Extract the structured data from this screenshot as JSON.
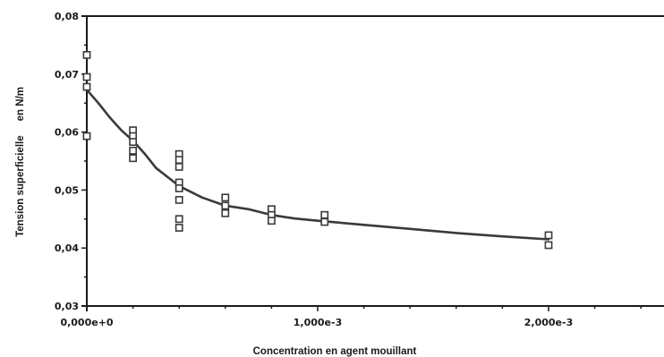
{
  "chart_data": {
    "type": "scatter",
    "title": "",
    "xlabel": "Concentration en agent mouillant",
    "ylabel": "Tension superficielle     en N/m",
    "xlim": [
      0,
      0.0025
    ],
    "ylim": [
      0.03,
      0.08
    ],
    "x_ticks": [
      {
        "value": 0,
        "label": "0,000e+0"
      },
      {
        "value": 0.001,
        "label": "1,000e-3"
      },
      {
        "value": 0.002,
        "label": "2,000e-3"
      }
    ],
    "y_ticks": [
      {
        "value": 0.03,
        "label": "0,03"
      },
      {
        "value": 0.04,
        "label": "0,04"
      },
      {
        "value": 0.05,
        "label": "0,05"
      },
      {
        "value": 0.06,
        "label": "0,06"
      },
      {
        "value": 0.07,
        "label": "0,07"
      },
      {
        "value": 0.08,
        "label": "0,08"
      }
    ],
    "grid": false,
    "legend": "none",
    "series": [
      {
        "type": "scatter",
        "marker": "square",
        "points": [
          [
            0,
            0.0733
          ],
          [
            0,
            0.0695
          ],
          [
            0,
            0.0678
          ],
          [
            0,
            0.0593
          ],
          [
            0.0002,
            0.0603
          ],
          [
            0.0002,
            0.0593
          ],
          [
            0.0002,
            0.0583
          ],
          [
            0.0002,
            0.0568
          ],
          [
            0.0002,
            0.0555
          ],
          [
            0.0004,
            0.0562
          ],
          [
            0.0004,
            0.0552
          ],
          [
            0.0004,
            0.054
          ],
          [
            0.0004,
            0.0513
          ],
          [
            0.0004,
            0.0503
          ],
          [
            0.0004,
            0.0483
          ],
          [
            0.0004,
            0.045
          ],
          [
            0.0004,
            0.0435
          ],
          [
            0.0006,
            0.0487
          ],
          [
            0.0006,
            0.0473
          ],
          [
            0.0006,
            0.046
          ],
          [
            0.0008,
            0.0467
          ],
          [
            0.0008,
            0.0457
          ],
          [
            0.0008,
            0.0447
          ],
          [
            0.00103,
            0.0457
          ],
          [
            0.00103,
            0.0445
          ],
          [
            0.002,
            0.0422
          ],
          [
            0.002,
            0.0405
          ]
        ]
      },
      {
        "type": "line",
        "points": [
          [
            0,
            0.0673
          ],
          [
            5e-05,
            0.065
          ],
          [
            0.0001,
            0.0625
          ],
          [
            0.00015,
            0.0603
          ],
          [
            0.0002,
            0.0585
          ],
          [
            0.00025,
            0.0563
          ],
          [
            0.0003,
            0.0538
          ],
          [
            0.0004,
            0.0507
          ],
          [
            0.0005,
            0.0487
          ],
          [
            0.0006,
            0.0473
          ],
          [
            0.0007,
            0.0467
          ],
          [
            0.0008,
            0.0457
          ],
          [
            0.0009,
            0.0451
          ],
          [
            0.001,
            0.0447
          ],
          [
            0.0012,
            0.044
          ],
          [
            0.0014,
            0.0433
          ],
          [
            0.0016,
            0.0426
          ],
          [
            0.0018,
            0.042
          ],
          [
            0.002,
            0.0415
          ]
        ]
      }
    ]
  }
}
